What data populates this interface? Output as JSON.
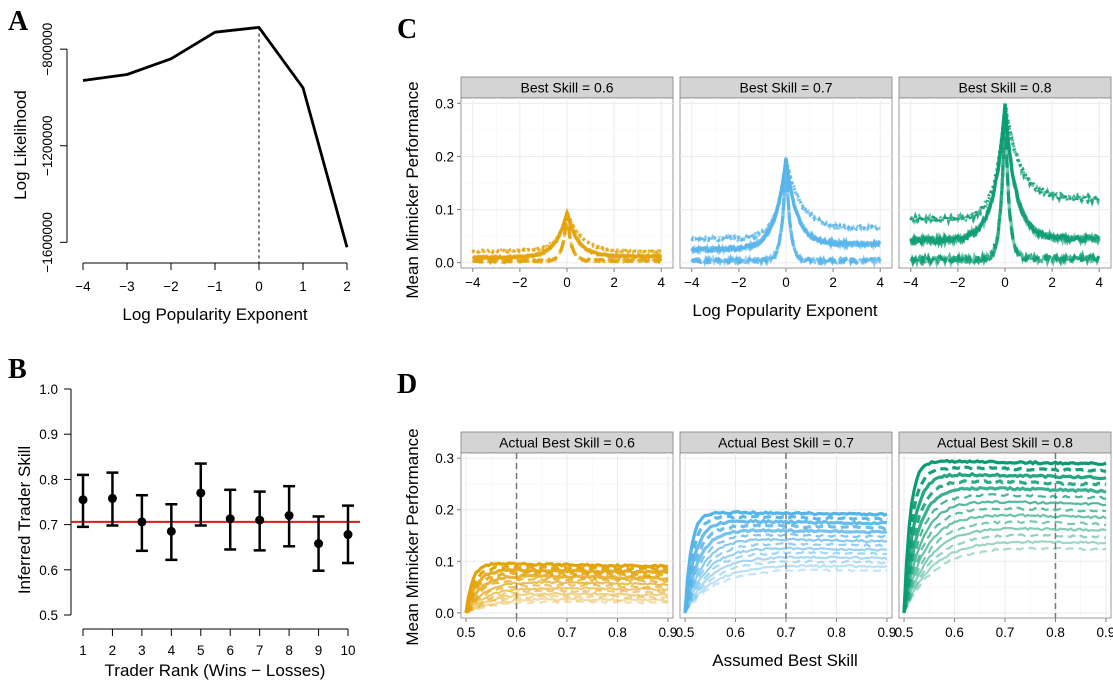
{
  "panels": {
    "A": {
      "label": "A",
      "xlabel": "Log Popularity Exponent",
      "ylabel": "Log Likelihood",
      "chart_data": {
        "type": "line",
        "x": [
          -4,
          -3,
          -2,
          -1,
          0,
          1,
          2
        ],
        "y": [
          -930000,
          -905000,
          -840000,
          -730000,
          -710000,
          -960000,
          -1620000
        ],
        "xlim": [
          -4,
          2
        ],
        "ylim": [
          -1620000,
          -710000
        ],
        "yticks": [
          -800000,
          -1200000,
          -1600000
        ],
        "yticklabels": [
          "−800000",
          "−1200000",
          "−1600000"
        ],
        "xticks": [
          -4,
          -3,
          -2,
          -1,
          0,
          1,
          2
        ],
        "xticklabels": [
          "−4",
          "−3",
          "−2",
          "−1",
          "0",
          "1",
          "2"
        ],
        "vline": 0
      }
    },
    "B": {
      "label": "B",
      "xlabel": "Trader Rank (Wins − Losses)",
      "ylabel": "Inferred Trader Skill",
      "chart_data": {
        "type": "scatter",
        "x": [
          1,
          2,
          3,
          4,
          5,
          6,
          7,
          8,
          9,
          10
        ],
        "y": [
          0.755,
          0.758,
          0.706,
          0.685,
          0.77,
          0.713,
          0.71,
          0.72,
          0.658,
          0.678
        ],
        "lower": [
          0.695,
          0.698,
          0.642,
          0.622,
          0.698,
          0.645,
          0.643,
          0.652,
          0.598,
          0.615
        ],
        "upper": [
          0.81,
          0.815,
          0.765,
          0.745,
          0.835,
          0.777,
          0.773,
          0.785,
          0.718,
          0.742
        ],
        "reference_line": 0.706,
        "reference_color": "#e01a1a",
        "ylim": [
          0.5,
          1.0
        ],
        "yticks": [
          0.5,
          0.6,
          0.7,
          0.8,
          0.9,
          1.0
        ],
        "yticklabels": [
          "0.5",
          "0.6",
          "0.7",
          "0.8",
          "0.9",
          "1.0"
        ],
        "xticklabels": [
          "1",
          "2",
          "3",
          "4",
          "5",
          "6",
          "7",
          "8",
          "9",
          "10"
        ]
      }
    },
    "C": {
      "label": "C",
      "xlabel": "Log Popularity Exponent",
      "ylabel": "Mean Mimicker Performance",
      "xticklabels": [
        "−4",
        "−2",
        "0",
        "2",
        "4"
      ],
      "yticklabels": [
        "0.0",
        "0.1",
        "0.2",
        "0.3"
      ],
      "facets": [
        {
          "strip": "Best Skill = 0.6",
          "color": "#e3a30a",
          "peak": 0.095,
          "low": [
            0.022,
            0.01,
            0.003
          ],
          "tail": [
            0.02,
            0.012,
            0.004
          ]
        },
        {
          "strip": "Best Skill = 0.7",
          "color": "#56b4e9",
          "peak": 0.195,
          "low": [
            0.045,
            0.025,
            0.004
          ],
          "tail": [
            0.065,
            0.035,
            0.004
          ]
        },
        {
          "strip": "Best Skill = 0.8",
          "color": "#0b9c73",
          "peak": 0.298,
          "low": [
            0.082,
            0.042,
            0.006
          ],
          "tail": [
            0.12,
            0.045,
            0.008
          ]
        }
      ],
      "chart_data": {
        "type": "line",
        "xlim": [
          -4.5,
          4.5
        ],
        "ylim": [
          -0.01,
          0.31
        ]
      }
    },
    "D": {
      "label": "D",
      "xlabel": "Assumed Best Skill",
      "ylabel": "Mean Mimicker Performance",
      "xticklabels": [
        "0.5",
        "0.6",
        "0.7",
        "0.8",
        "0.9"
      ],
      "yticklabels": [
        "0.0",
        "0.1",
        "0.2",
        "0.3"
      ],
      "facets": [
        {
          "strip": "Actual Best Skill = 0.6",
          "color": "#e3a30a",
          "actual": 0.6,
          "peak": 0.095
        },
        {
          "strip": "Actual Best Skill = 0.7",
          "color": "#56b4e9",
          "actual": 0.7,
          "peak": 0.195
        },
        {
          "strip": "Actual Best Skill = 0.8",
          "color": "#0b9c73",
          "actual": 0.8,
          "peak": 0.295
        }
      ],
      "chart_data": {
        "type": "line",
        "xlim": [
          0.49,
          0.91
        ],
        "ylim": [
          -0.01,
          0.31
        ]
      }
    }
  }
}
